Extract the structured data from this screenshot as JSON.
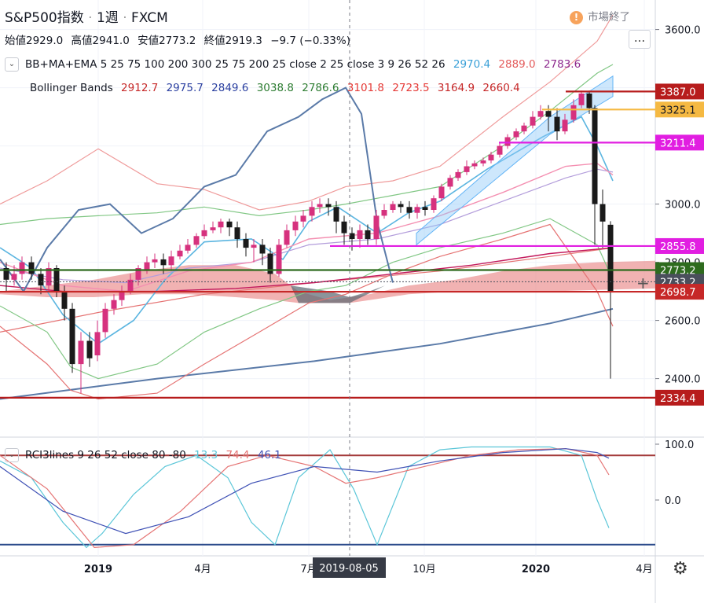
{
  "header": {
    "symbol": "S&P500指数",
    "interval": "1週",
    "source": "FXCM",
    "market_status": "市場終了",
    "market_status_icon": "exclamation-icon",
    "ohlc": {
      "open_label": "始値",
      "open": "2929.0",
      "high_label": "高値",
      "high": "2941.0",
      "low_label": "安値",
      "low": "2773.2",
      "close_label": "終値",
      "close": "2919.3",
      "change": "−9.7 (−0.33%)"
    },
    "more_button": "..."
  },
  "indicators": {
    "main": {
      "name": "BB+MA+EMA 5 25 75 100 200 300 25 75 200 25 close 2 25 close 3 9 26 52 26",
      "values": [
        {
          "v": "2970.4",
          "color": "#3aa0d8"
        },
        {
          "v": "2889.0",
          "color": "#e35b5b"
        },
        {
          "v": "2783.6",
          "color": "#8e2a8e"
        }
      ]
    },
    "bollinger": {
      "name": "Bollinger Bands",
      "values": [
        {
          "v": "2912.7",
          "color": "#c62828"
        },
        {
          "v": "2975.7",
          "color": "#2a3fa0"
        },
        {
          "v": "2849.6",
          "color": "#2a3fa0"
        },
        {
          "v": "3038.8",
          "color": "#2e7d32"
        },
        {
          "v": "2786.6",
          "color": "#2e7d32"
        },
        {
          "v": "3101.8",
          "color": "#e53935"
        },
        {
          "v": "2723.5",
          "color": "#e53935"
        },
        {
          "v": "3164.9",
          "color": "#c62828"
        },
        {
          "v": "2660.4",
          "color": "#c62828"
        }
      ]
    },
    "rci": {
      "name": "RCI3lines 9 26 52 close 80 -80",
      "values": [
        {
          "v": "13.3",
          "color": "#5bc6d8"
        },
        {
          "v": "74.4",
          "color": "#e57373"
        },
        {
          "v": "46.1",
          "color": "#3f51b5"
        }
      ]
    }
  },
  "price_axis": {
    "ticks": [
      "3600.0",
      "3400.0",
      "3200.0",
      "3000.0",
      "2800.0",
      "2600.0",
      "2400.0"
    ]
  },
  "price_markers": [
    {
      "label": "3387.0",
      "price": 3387.0,
      "color": "#b71c1c"
    },
    {
      "label": "3325.1",
      "price": 3325.1,
      "color": "#f5b942"
    },
    {
      "label": "3211.4",
      "price": 3211.4,
      "color": "#e11ee1"
    },
    {
      "label": "2855.8",
      "price": 2855.8,
      "color": "#e11ee1"
    },
    {
      "label": "2773.2",
      "price": 2773.2,
      "color": "#2e6b1e"
    },
    {
      "label": "2733.2",
      "price": 2733.2,
      "color": "#4a4f5c"
    },
    {
      "label": "2698.7",
      "price": 2698.7,
      "color": "#c62828"
    },
    {
      "label": "2334.4",
      "price": 2334.4,
      "color": "#b71c1c"
    }
  ],
  "rci_axis": {
    "ticks": [
      "100.0",
      "0.0"
    ]
  },
  "time_axis": {
    "ticks": [
      "2019",
      "4月",
      "7月",
      "10月",
      "2020",
      "4月"
    ],
    "crosshair_label": "2019-08-05"
  },
  "colors": {
    "up": "#d6317e",
    "down": "#1a1a1a",
    "cloud": "#e57373",
    "cloud_neg": "#5a6770"
  },
  "chart_data": {
    "type": "candlestick",
    "interval": "weekly",
    "x": [
      "2018-11",
      "2018-12",
      "2019-01",
      "2019-02",
      "2019-03",
      "2019-04",
      "2019-05",
      "2019-06",
      "2019-07",
      "2019-08",
      "2019-09",
      "2019-10",
      "2019-11",
      "2019-12",
      "2020-01",
      "2020-02",
      "2020-03"
    ],
    "close": [
      2760,
      2700,
      2450,
      2700,
      2800,
      2880,
      2940,
      2890,
      3000,
      2930,
      2980,
      3000,
      3100,
      3210,
      3300,
      3380,
      2920
    ],
    "last": {
      "open": 2929.0,
      "high": 2941.0,
      "low": 2773.2,
      "close": 2919.3
    },
    "ylim": [
      2280,
      3700
    ],
    "horizontal_levels": [
      3387.0,
      3325.1,
      3211.4,
      2855.8,
      2773.2,
      2733.2,
      2698.7,
      2334.4
    ],
    "rci": {
      "lines": [
        "9",
        "26",
        "52"
      ],
      "last": [
        13.3,
        74.4,
        46.1
      ],
      "levels": [
        80,
        -80
      ],
      "ylim": [
        -100,
        100
      ]
    }
  }
}
